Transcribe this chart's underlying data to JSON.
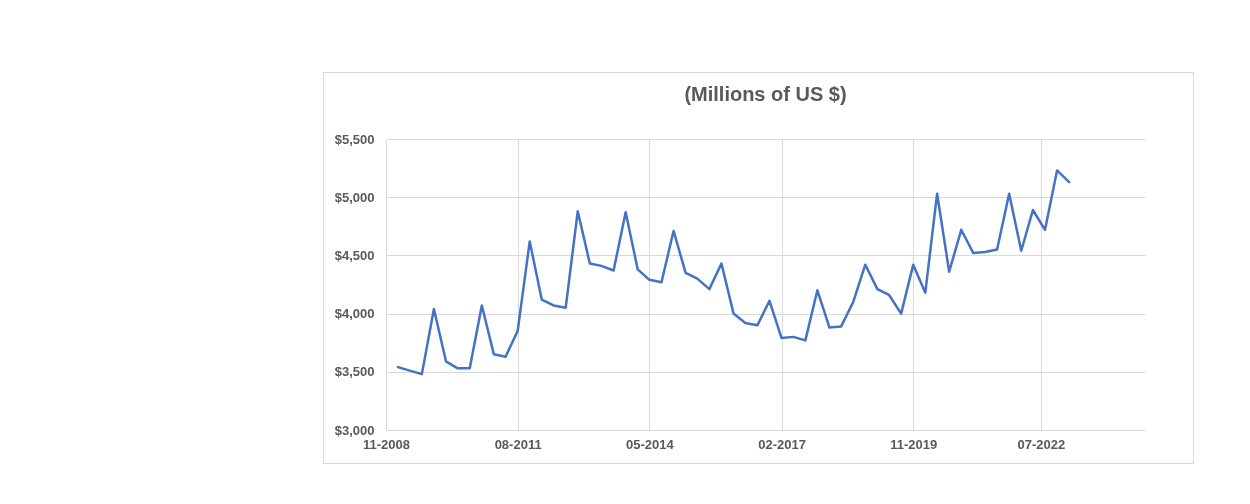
{
  "chart_data": {
    "type": "line",
    "title": "(Millions of US $)",
    "x": [
      "2009-02",
      "2009-05",
      "2009-08",
      "2009-11",
      "2010-02",
      "2010-05",
      "2010-08",
      "2010-11",
      "2011-02",
      "2011-05",
      "2011-08",
      "2011-11",
      "2012-02",
      "2012-05",
      "2012-08",
      "2012-11",
      "2013-02",
      "2013-05",
      "2013-08",
      "2013-11",
      "2014-02",
      "2014-05",
      "2014-08",
      "2014-11",
      "2015-02",
      "2015-05",
      "2015-08",
      "2015-11",
      "2016-02",
      "2016-05",
      "2016-08",
      "2016-11",
      "2017-02",
      "2017-05",
      "2017-08",
      "2017-11",
      "2018-02",
      "2018-05",
      "2018-08",
      "2018-11",
      "2019-02",
      "2019-05",
      "2019-08",
      "2019-11",
      "2020-02",
      "2020-05",
      "2020-08",
      "2020-11",
      "2021-02",
      "2021-05",
      "2021-08",
      "2021-11",
      "2022-02",
      "2022-05",
      "2022-08",
      "2022-11",
      "2023-02"
    ],
    "series": [
      {
        "color": "#4472c4",
        "values": [
          3540,
          3510,
          3480,
          4040,
          3590,
          3530,
          3530,
          4070,
          3650,
          3630,
          3850,
          4620,
          4120,
          4070,
          4050,
          4880,
          4430,
          4410,
          4370,
          4870,
          4380,
          4290,
          4270,
          4710,
          4350,
          4300,
          4210,
          4430,
          4000,
          3920,
          3900,
          4110,
          3790,
          3800,
          3770,
          4200,
          3880,
          3890,
          4100,
          4420,
          4210,
          4160,
          4000,
          4420,
          4180,
          5030,
          4360,
          4720,
          4520,
          4530,
          4550,
          5030,
          4540,
          4890,
          4720,
          5230,
          5130
        ]
      }
    ],
    "xlim": [
      "2008-11",
      "2024-09"
    ],
    "xticks": [
      {
        "value": "2008-11",
        "label": "11-2008"
      },
      {
        "value": "2011-08",
        "label": "08-2011"
      },
      {
        "value": "2014-05",
        "label": "05-2014"
      },
      {
        "value": "2017-02",
        "label": "02-2017"
      },
      {
        "value": "2019-11",
        "label": "11-2019"
      },
      {
        "value": "2022-07",
        "label": "07-2022"
      }
    ],
    "ylim": [
      3000,
      5500
    ],
    "yticks": [
      {
        "value": 3000,
        "label": "$3,000"
      },
      {
        "value": 3500,
        "label": "$3,500"
      },
      {
        "value": 4000,
        "label": "$4,000"
      },
      {
        "value": 4500,
        "label": "$4,500"
      },
      {
        "value": 5000,
        "label": "$5,000"
      },
      {
        "value": 5500,
        "label": "$5,500"
      }
    ],
    "grid": true,
    "marker": "none",
    "line_style": "solid"
  }
}
